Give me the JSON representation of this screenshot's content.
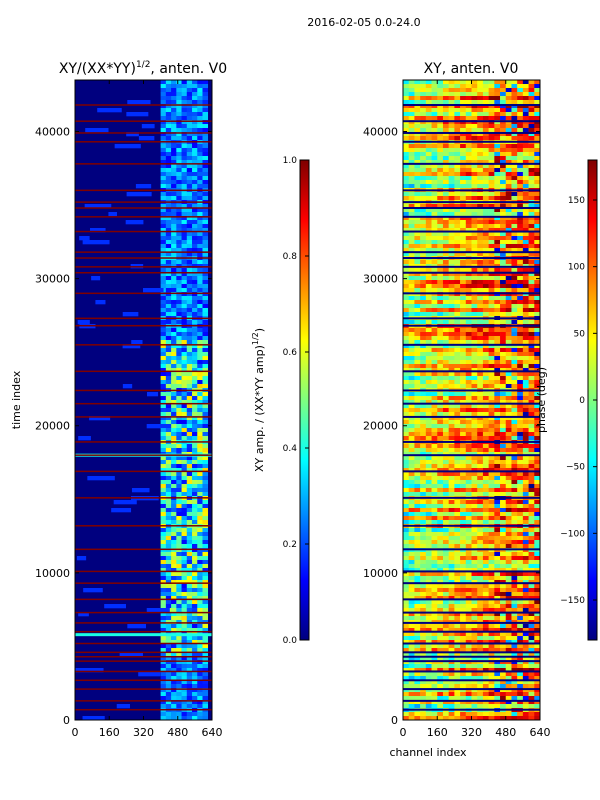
{
  "suptitle": "2016-02-05 0.0-24.0",
  "colors": {
    "background": "#00007f",
    "flag_line": "#7f0000",
    "jet": [
      "#00007f",
      "#0000ff",
      "#007fff",
      "#00ffff",
      "#7fff7f",
      "#ffff00",
      "#ff7f00",
      "#ff0000",
      "#7f0000"
    ]
  },
  "chart_data": [
    {
      "type": "heatmap",
      "id": "amp",
      "title": "XY/(XX*YY)",
      "title_superscript": "1/2",
      "title_suffix": ", anten. V0",
      "xlabel": "",
      "ylabel": "time index",
      "xlim": [
        0,
        640
      ],
      "ylim": [
        0,
        43500
      ],
      "xticks": [
        0,
        160,
        320,
        480,
        640
      ],
      "xtick_labels": [
        "0",
        "160",
        "320",
        "480",
        "640"
      ],
      "yticks": [
        0,
        10000,
        20000,
        30000,
        40000
      ],
      "ytick_labels": [
        "0",
        "10000",
        "20000",
        "30000",
        "40000"
      ],
      "colorbar": {
        "label": "XY amp. / (XX*YY amp)",
        "label_superscript": "1/2",
        "range": [
          0.0,
          1.0
        ],
        "ticks": [
          0.0,
          0.2,
          0.4,
          0.6,
          0.8,
          1.0
        ],
        "tick_labels": [
          "0.0",
          "0.2",
          "0.4",
          "0.6",
          "0.8",
          "1.0"
        ]
      },
      "flagged_time_rows": [
        700,
        1300,
        2100,
        2700,
        3300,
        4000,
        4300,
        4600,
        5200,
        6000,
        6600,
        7300,
        8200,
        9300,
        10100,
        11600,
        13200,
        15100,
        16900,
        18000,
        18900,
        20600,
        21500,
        22400,
        23700,
        25500,
        26800,
        27300,
        29000,
        30400,
        30800,
        31400,
        31800,
        33200,
        34200,
        34800,
        35200,
        36000,
        37800,
        39300,
        39900,
        40700,
        41800
      ],
      "feature_band_channels": [
        400,
        620
      ],
      "bright_time_row": 18000,
      "bright_time_row_2": 5800
    },
    {
      "type": "heatmap",
      "id": "phase",
      "title": "XY, anten. V0",
      "xlabel": "channel index",
      "ylabel": "",
      "xlim": [
        0,
        640
      ],
      "ylim": [
        0,
        43500
      ],
      "xticks": [
        0,
        160,
        320,
        480,
        640
      ],
      "xtick_labels": [
        "0",
        "160",
        "320",
        "480",
        "640"
      ],
      "yticks": [
        0,
        10000,
        20000,
        30000,
        40000
      ],
      "ytick_labels": [
        "0",
        "10000",
        "20000",
        "30000",
        "40000"
      ],
      "colorbar": {
        "label": "phase (deg)",
        "range": [
          -180,
          180
        ],
        "ticks": [
          -150,
          -100,
          -50,
          0,
          50,
          100,
          150
        ],
        "tick_labels": [
          "−150",
          "−100",
          "−50",
          "0",
          "50",
          "100",
          "150"
        ]
      },
      "flagged_time_rows": [
        700,
        1300,
        2100,
        2700,
        3300,
        4000,
        4300,
        4600,
        5200,
        6000,
        6600,
        7300,
        8200,
        9300,
        10100,
        11600,
        13200,
        15100,
        16900,
        18000,
        18900,
        20600,
        21500,
        22400,
        23700,
        25500,
        26800,
        27300,
        29000,
        30400,
        30800,
        31400,
        31800,
        33200,
        34200,
        34800,
        35200,
        36000,
        37800,
        39300,
        39900,
        40700,
        41800
      ]
    }
  ]
}
